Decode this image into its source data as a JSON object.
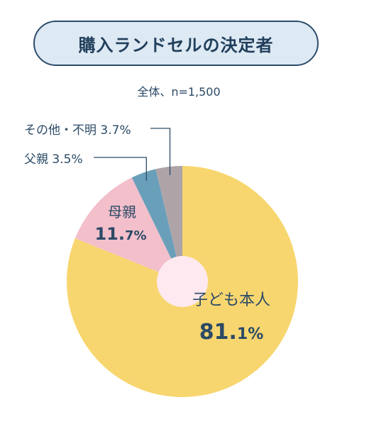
{
  "title": "購入ランドセルの決定者",
  "subtitle": "全体、n=1,500",
  "chart_data": {
    "type": "pie",
    "start": "12 o'clock",
    "direction": "clockwise",
    "slices": [
      {
        "label": "子ども本人",
        "value": 81.1,
        "value_text": "81.1%",
        "color": "#f8d66f"
      },
      {
        "label": "母親",
        "value": 11.7,
        "value_text": "11.7%",
        "color": "#f2bfcb"
      },
      {
        "label": "父親",
        "value": 3.5,
        "value_text": "3.5%",
        "color": "#6a9fba"
      },
      {
        "label": "その他・不明",
        "value": 3.7,
        "value_text": "3.7%",
        "color": "#aea4a8"
      }
    ],
    "center_hole_color": "#fde9ef",
    "leader_line_color": "#2b4a66"
  },
  "labels": {
    "child": "子ども本人",
    "child_value_main": "81.",
    "child_value_small": "1%",
    "mother": "母親",
    "mother_value_main": "11.",
    "mother_value_small": "7%",
    "father": "父親 3.5%",
    "other": "その他・不明 3.7%"
  }
}
